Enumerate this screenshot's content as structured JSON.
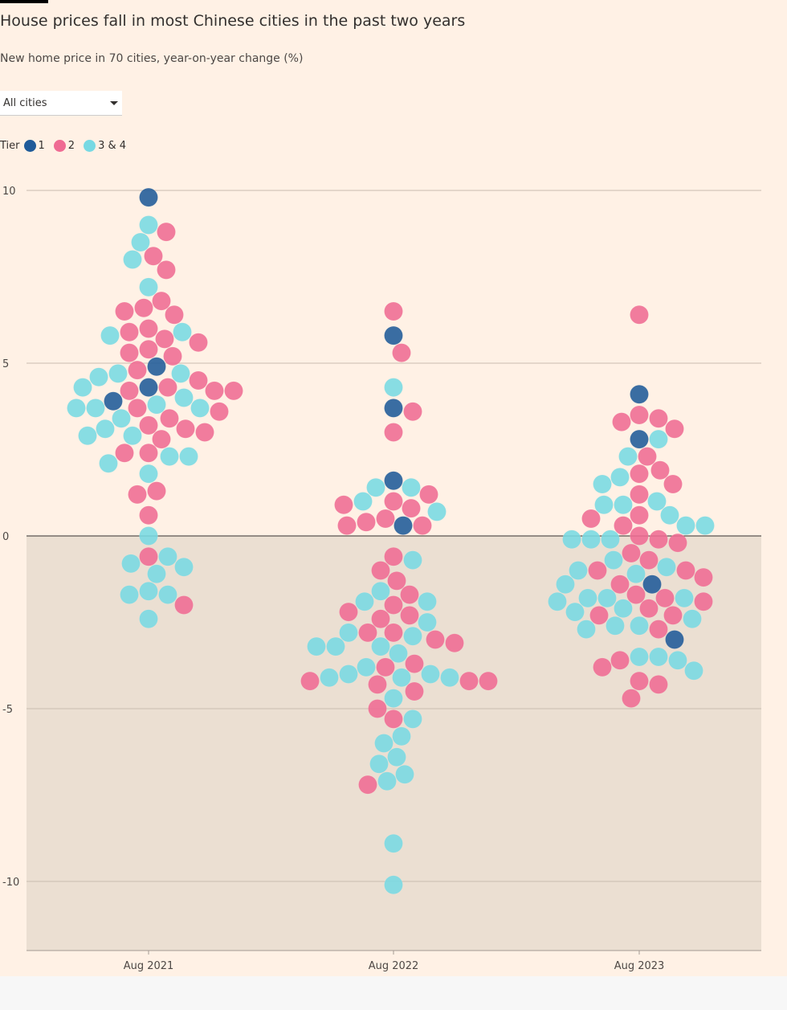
{
  "header": {
    "title": "House prices fall in most Chinese cities in the past two years",
    "subtitle": "New home price in 70 cities, year-on-year change (%)"
  },
  "filter": {
    "selected": "All cities"
  },
  "legend": {
    "label": "Tier",
    "items": [
      {
        "label": "1",
        "color": "#1f5a99"
      },
      {
        "label": "2",
        "color": "#ef6b93"
      },
      {
        "label": "3 & 4",
        "color": "#77d9e3"
      }
    ]
  },
  "colors": {
    "background": "#fff1e5",
    "negative_band": "#ebdfd2"
  },
  "chart_data": {
    "type": "scatter",
    "subtype": "beeswarm",
    "title": "House prices fall in most Chinese cities in the past two years",
    "ylabel": "New home price in 70 cities, year-on-year change (%)",
    "ylim": [
      -12,
      10.5
    ],
    "yticks": [
      10,
      5,
      0,
      -5,
      -10
    ],
    "ytick_labels": [
      "10",
      "5",
      "0",
      "-5",
      "-10"
    ],
    "categories": [
      "Aug 2021",
      "Aug 2022",
      "Aug 2023"
    ],
    "grid": true,
    "legend_position": "top-left",
    "series": [
      {
        "period": "Aug 2021",
        "tier1": [
          9.8,
          4.9,
          4.3,
          3.9
        ],
        "tier2": [
          8.8,
          8.1,
          7.7,
          6.8,
          6.6,
          6.5,
          6.4,
          6.0,
          5.9,
          5.7,
          5.6,
          5.4,
          5.3,
          5.2,
          4.8,
          4.5,
          4.3,
          4.2,
          4.2,
          4.2,
          3.7,
          3.6,
          3.4,
          3.2,
          3.1,
          3.0,
          2.8,
          2.4,
          2.4,
          1.3,
          1.2,
          0.6,
          -0.6,
          -2.0
        ],
        "tier34": [
          9.0,
          8.5,
          8.0,
          7.2,
          5.9,
          5.8,
          4.7,
          4.7,
          4.6,
          4.3,
          4.0,
          3.8,
          3.7,
          3.7,
          3.7,
          3.4,
          3.1,
          2.9,
          2.9,
          2.3,
          2.3,
          2.1,
          1.8,
          0.0,
          -0.6,
          -0.8,
          -0.9,
          -1.1,
          -1.6,
          -1.7,
          -1.7,
          -2.4
        ]
      },
      {
        "period": "Aug 2022",
        "tier1": [
          5.8,
          3.7,
          1.6,
          0.3
        ],
        "tier2": [
          6.5,
          5.3,
          3.6,
          3.0,
          1.2,
          1.0,
          0.9,
          0.8,
          0.5,
          0.4,
          0.3,
          0.3,
          -0.6,
          -1.0,
          -1.3,
          -1.7,
          -2.0,
          -2.2,
          -2.3,
          -2.4,
          -2.8,
          -2.8,
          -3.0,
          -3.1,
          -3.7,
          -3.8,
          -4.2,
          -4.2,
          -4.2,
          -4.3,
          -4.5,
          -5.0,
          -5.3,
          -7.2
        ],
        "tier34": [
          4.3,
          1.4,
          1.4,
          1.0,
          0.7,
          -0.7,
          -1.6,
          -1.9,
          -1.9,
          -2.5,
          -2.8,
          -2.9,
          -3.2,
          -3.2,
          -3.2,
          -3.4,
          -3.8,
          -4.0,
          -4.0,
          -4.1,
          -4.1,
          -4.1,
          -4.7,
          -5.3,
          -5.8,
          -6.0,
          -6.4,
          -6.6,
          -6.9,
          -7.1,
          -8.9,
          -10.1
        ]
      },
      {
        "period": "Aug 2023",
        "tier1": [
          4.1,
          2.8,
          -1.4,
          -3.0
        ],
        "tier2": [
          6.4,
          3.5,
          3.4,
          3.3,
          3.1,
          2.3,
          1.9,
          1.8,
          1.5,
          1.2,
          0.6,
          0.5,
          0.3,
          0.0,
          -0.1,
          -0.2,
          -0.5,
          -0.7,
          -1.0,
          -1.0,
          -1.2,
          -1.4,
          -1.7,
          -1.8,
          -1.9,
          -2.1,
          -2.3,
          -2.3,
          -2.7,
          -3.6,
          -3.8,
          -4.2,
          -4.3,
          -4.7
        ],
        "tier34": [
          2.8,
          2.3,
          1.7,
          1.5,
          1.0,
          0.9,
          0.9,
          0.6,
          0.3,
          0.3,
          -0.1,
          -0.1,
          -0.1,
          -0.7,
          -0.9,
          -1.0,
          -1.1,
          -1.4,
          -1.8,
          -1.8,
          -1.8,
          -1.9,
          -2.1,
          -2.2,
          -2.4,
          -2.6,
          -2.6,
          -2.7,
          -3.5,
          -3.5,
          -3.6,
          -3.9
        ]
      }
    ]
  }
}
